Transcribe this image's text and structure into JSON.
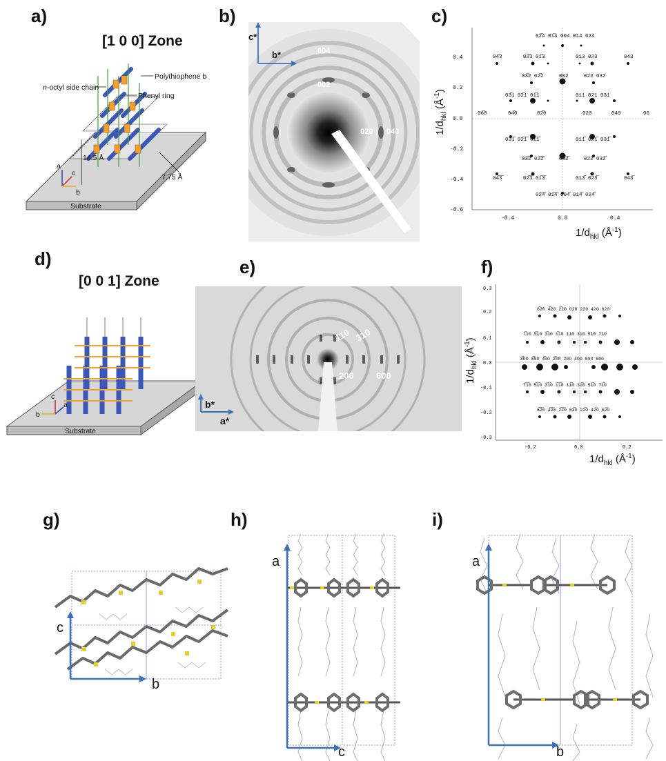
{
  "labels": {
    "a": "a)",
    "b": "b)",
    "c": "c)",
    "d": "d)",
    "e": "e)",
    "f": "f)",
    "g": "g)",
    "h": "h)",
    "i": "i)"
  },
  "panel_a": {
    "zone": "[1 0 0] Zone",
    "backbone": "Polythiophene backbone",
    "side_chain_italic": "n",
    "side_chain": "-octyl side chain",
    "phenyl": "Phenyl ring",
    "dim1": "14.5 Å",
    "dim2": "7.75 Å",
    "substrate": "Substrate",
    "axes": {
      "a": "a",
      "b": "b",
      "c": "c"
    }
  },
  "panel_b": {
    "axes": {
      "c": "c*",
      "b": "b*"
    },
    "spots": {
      "s004": "004",
      "s002": "002",
      "s020": "020",
      "s040": "040"
    }
  },
  "panel_c": {
    "ylabel": "1/d",
    "ysub": "hkl",
    "yunit": " (Å",
    "yexp": "-1",
    "xlabel": "1/d",
    "xsub": "hkl",
    "xunit": " (Å",
    "xexp": "-1",
    "close": ")",
    "yticks": [
      "0.4",
      "0.2",
      "0.0",
      "-0.2",
      "-0.4",
      "-0.6"
    ],
    "xticks": [
      "-0.4",
      "0.0",
      "0.4"
    ],
    "rows": [
      [
        "02̅4 01̅4 004 014 024"
      ],
      [
        "04̅3",
        "02̅3 01̅3",
        "013 023",
        "043"
      ],
      [
        "03̅2 02̅2",
        "002",
        "022 032"
      ],
      [
        "03̅1 02̅1 01̅1",
        "011 021 031"
      ],
      [
        "06̅0",
        "04̅0",
        "02̅0",
        "020",
        "040",
        "06"
      ],
      [
        "03̅1̅ 02̅1̅ 01̅1̅",
        "011̅ 021̅ 031̅"
      ],
      [
        "03̅2̅ 02̅2̅",
        "002̅",
        "022̅ 032̅"
      ],
      [
        "04̅3̅",
        "02̅3̅ 01̅3̅",
        "013̅ 023̅",
        "043̅"
      ],
      [
        "02̅4̅ 01̅4̅ 004̅ 014̅ 024̅"
      ]
    ]
  },
  "panel_d": {
    "zone": "[0 0 1] Zone",
    "substrate": "Substrate",
    "axes": {
      "a": "a",
      "b": "b",
      "c": "c"
    }
  },
  "panel_e": {
    "axes": {
      "b": "b*",
      "a": "a*"
    },
    "spots": {
      "s110": "110",
      "s310": "310",
      "s200": "200",
      "s600": "600"
    }
  },
  "panel_f": {
    "ylabel": "1/d",
    "ysub": "hkl",
    "yunit": " (Å",
    "yexp": "-1",
    "xlabel": "1/d",
    "xsub": "hkl",
    "xunit": " (Å",
    "xexp": "-1",
    "close": ")",
    "yticks": [
      "0.3",
      "0.2",
      "0.1",
      "0.0",
      "-0.1",
      "-0.2",
      "-0.3"
    ],
    "xticks": [
      "-0.2",
      "0.0",
      "0.2"
    ],
    "rows": [
      [
        "6̅20  4̅20  2̅20  020  220  420  620"
      ],
      [
        "7̅10  5̅10  3̅10  1̅10  110  310  510  710"
      ],
      [
        "8̅00  6̅00  4̅00  2̅00        200  400  600  800"
      ],
      [
        "7̅1̅0  5̅1̅0  3̅1̅0  1̅1̅0  11̅0  31̅0  51̅0  71̅0"
      ],
      [
        "6̅2̅0  4̅2̅0  2̅2̅0  02̅0  22̅0  42̅0  62̅0"
      ]
    ]
  },
  "panel_g": {
    "axes": {
      "c": "c",
      "b": "b"
    }
  },
  "panel_h": {
    "axes": {
      "a": "a",
      "c": "c"
    }
  },
  "panel_i": {
    "axes": {
      "a": "a",
      "b": "b"
    }
  }
}
